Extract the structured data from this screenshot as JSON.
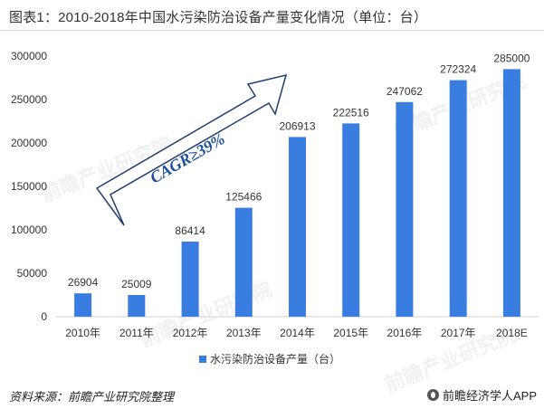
{
  "header": {
    "title": "图表1：2010-2018年中国水污染防治设备产量变化情况（单位：台）"
  },
  "footer": {
    "source": "资料来源：前瞻产业研究院整理",
    "brand": "前瞻经济学人APP"
  },
  "watermark": {
    "text": "前瞻产业研究院"
  },
  "annotation": {
    "text": "CAGR≥39%"
  },
  "colors": {
    "bar": "#3a7de0",
    "axis": "#d0d0d0",
    "text": "#333333"
  },
  "chart_data": {
    "type": "bar",
    "categories": [
      "2010年",
      "2011年",
      "2012年",
      "2013年",
      "2014年",
      "2015年",
      "2016年",
      "2017年",
      "2018E"
    ],
    "series": [
      {
        "name": "水污染防治设备产量（台）",
        "values": [
          26904,
          25009,
          86414,
          125466,
          206913,
          222516,
          247062,
          272324,
          285000
        ]
      }
    ],
    "data_labels": [
      "26904",
      "25009",
      "86414",
      "125466",
      "206913",
      "222516",
      "247062",
      "272324",
      "285000"
    ],
    "yticks": [
      "0",
      "50000",
      "100000",
      "150000",
      "200000",
      "250000",
      "300000"
    ],
    "ylim": [
      0,
      300000
    ],
    "legend_position": "bottom",
    "grid": false
  }
}
